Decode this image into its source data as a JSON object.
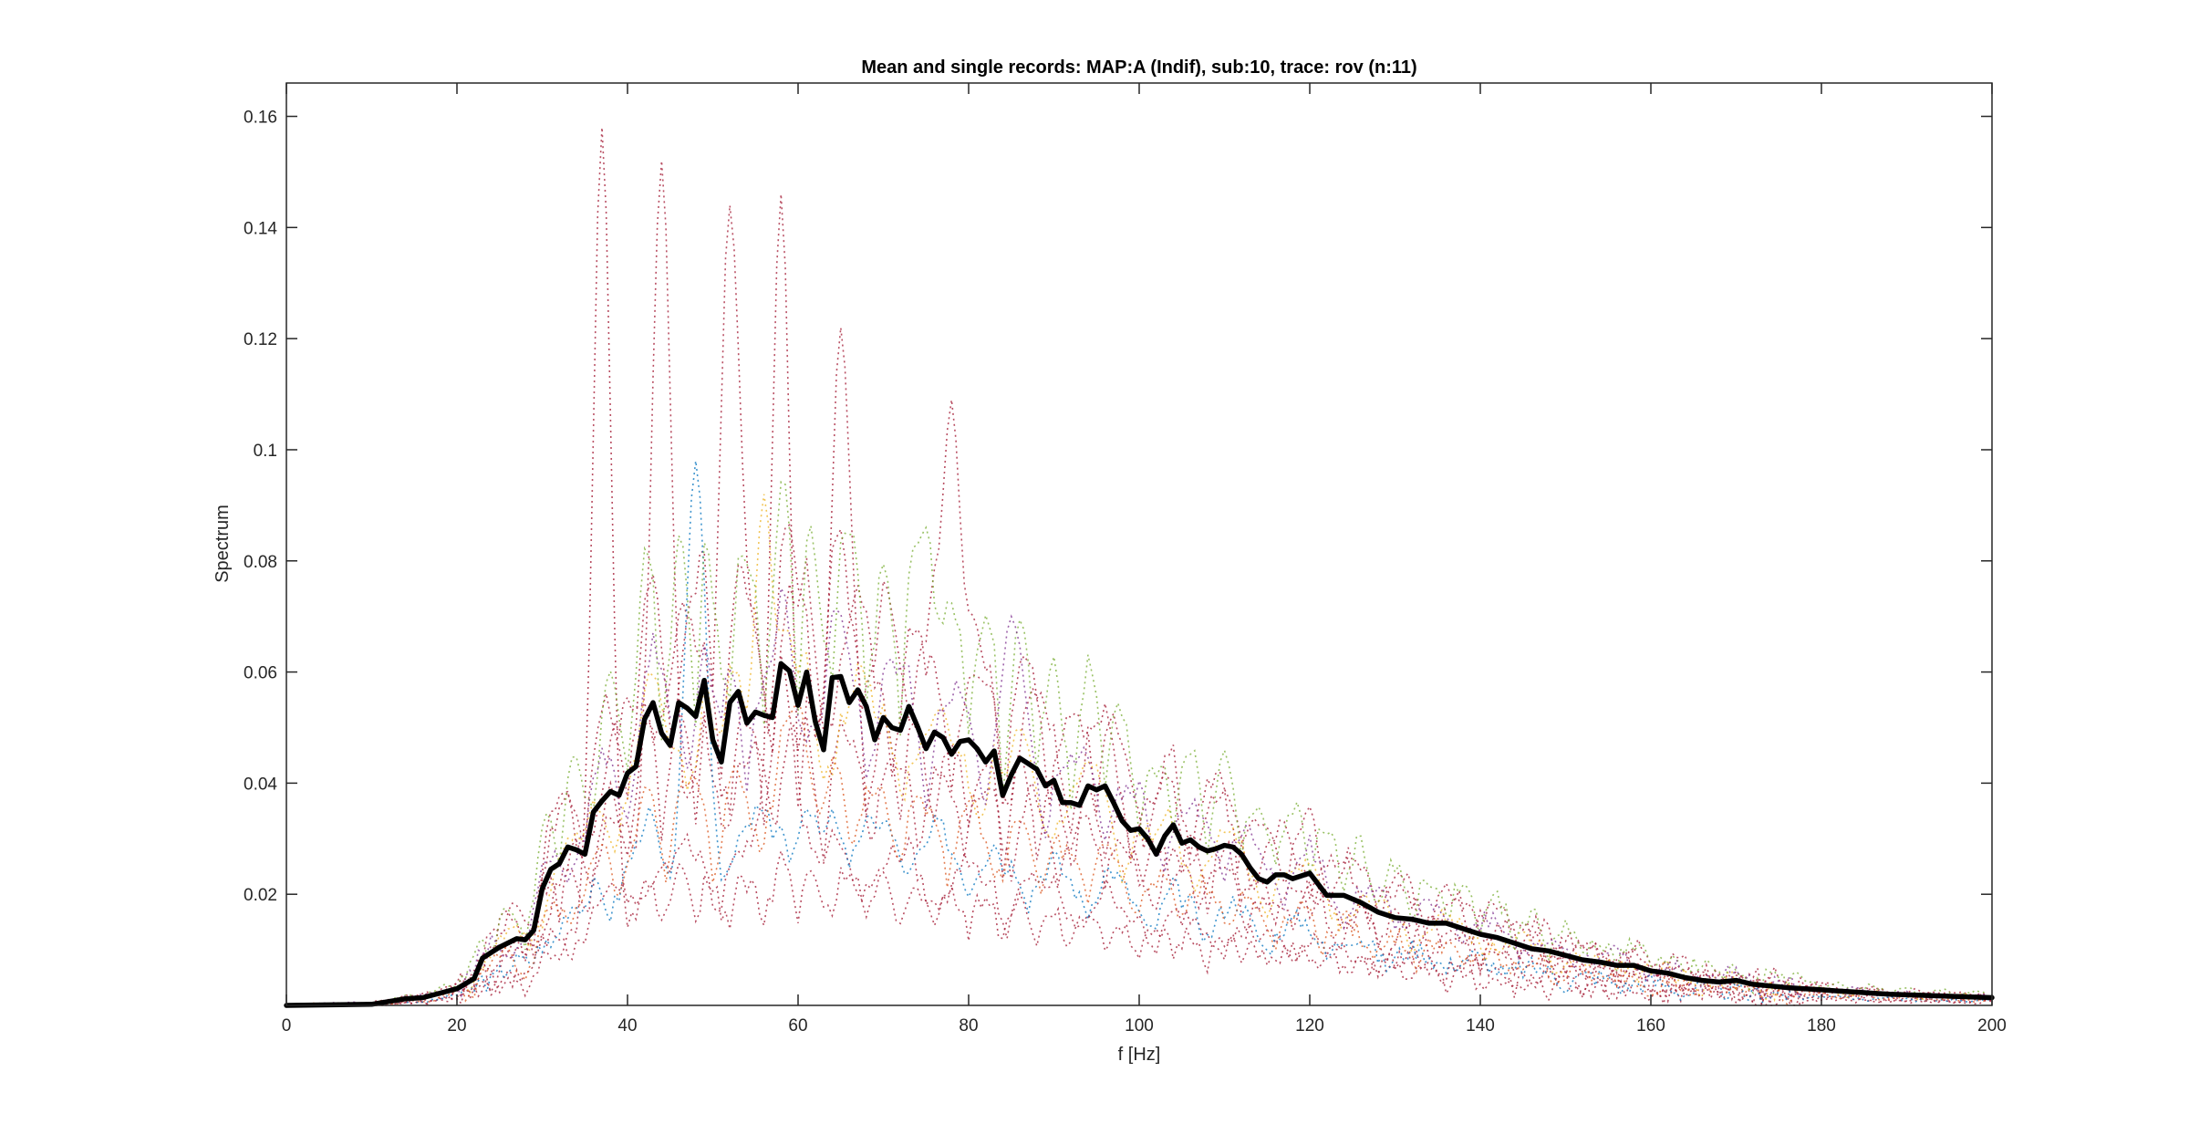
{
  "chart_data": {
    "type": "line",
    "title": "Mean and single records: MAP:A (Indif), sub:10, trace: rov (n:11)",
    "xlabel": "f [Hz]",
    "ylabel": "Spectrum",
    "xlim": [
      0,
      200
    ],
    "ylim": [
      0,
      0.166
    ],
    "x_ticks": [
      0,
      20,
      40,
      60,
      80,
      100,
      120,
      140,
      160,
      180,
      200
    ],
    "x_tick_labels": [
      "0",
      "20",
      "40",
      "60",
      "80",
      "100",
      "120",
      "140",
      "160",
      "180",
      "200"
    ],
    "y_ticks": [
      0.02,
      0.04,
      0.06,
      0.08,
      0.1,
      0.12,
      0.14,
      0.16
    ],
    "y_tick_labels": [
      "0.02",
      "0.04",
      "0.06",
      "0.08",
      "0.1",
      "0.12",
      "0.14",
      "0.16"
    ],
    "grid": false,
    "box": true,
    "mean_series": {
      "color": "#000000",
      "style": "solid-thick",
      "x": [
        0,
        10,
        14,
        16,
        18,
        20,
        22,
        23,
        25,
        27,
        28,
        29,
        30,
        31,
        32,
        33,
        34,
        35,
        36,
        37,
        38,
        39,
        40,
        41,
        42,
        43,
        44,
        45,
        46,
        47,
        48,
        49,
        50,
        51,
        52,
        53,
        54,
        55,
        56,
        57,
        58,
        59,
        60,
        61,
        62,
        63,
        64,
        65,
        66,
        67,
        68,
        69,
        70,
        71,
        72,
        73,
        74,
        75,
        76,
        77,
        78,
        79,
        80,
        81,
        82,
        83,
        84,
        85,
        86,
        87,
        88,
        89,
        90,
        91,
        92,
        93,
        94,
        95,
        96,
        97,
        98,
        99,
        100,
        101,
        102,
        103,
        104,
        105,
        106,
        107,
        108,
        109,
        110,
        111,
        112,
        113,
        114,
        115,
        116,
        117,
        118,
        120,
        122,
        124,
        126,
        128,
        130,
        132,
        134,
        136,
        138,
        140,
        142,
        144,
        146,
        148,
        150,
        152,
        154,
        156,
        158,
        160,
        162,
        164,
        166,
        168,
        170,
        172,
        174,
        176,
        178,
        180,
        182,
        184,
        186,
        188,
        190,
        192,
        194,
        196,
        198,
        200
      ],
      "y": [
        0.0,
        0.0002,
        0.0012,
        0.0014,
        0.0022,
        0.003,
        0.0048,
        0.0085,
        0.0105,
        0.012,
        0.0118,
        0.0135,
        0.021,
        0.0245,
        0.0255,
        0.0285,
        0.028,
        0.0272,
        0.0348,
        0.0368,
        0.0385,
        0.0378,
        0.0418,
        0.043,
        0.0515,
        0.0545,
        0.049,
        0.0468,
        0.0545,
        0.0535,
        0.052,
        0.0585,
        0.0478,
        0.0438,
        0.0545,
        0.0565,
        0.0508,
        0.0528,
        0.0522,
        0.0518,
        0.0615,
        0.0602,
        0.054,
        0.06,
        0.0512,
        0.046,
        0.059,
        0.0592,
        0.0545,
        0.0568,
        0.0538,
        0.0478,
        0.0518,
        0.05,
        0.0495,
        0.0538,
        0.0502,
        0.0462,
        0.0492,
        0.0482,
        0.0452,
        0.0475,
        0.0478,
        0.0462,
        0.0438,
        0.0458,
        0.0378,
        0.0415,
        0.0445,
        0.0435,
        0.0425,
        0.0395,
        0.0405,
        0.0365,
        0.0365,
        0.036,
        0.0395,
        0.0388,
        0.0395,
        0.0365,
        0.0332,
        0.0315,
        0.0318,
        0.03,
        0.0272,
        0.0305,
        0.0325,
        0.0292,
        0.0298,
        0.0285,
        0.0278,
        0.0282,
        0.0288,
        0.0285,
        0.0272,
        0.0248,
        0.0228,
        0.0222,
        0.0235,
        0.0235,
        0.0228,
        0.0238,
        0.0198,
        0.0198,
        0.0185,
        0.0168,
        0.0158,
        0.0155,
        0.0148,
        0.0148,
        0.0138,
        0.0128,
        0.0122,
        0.0112,
        0.0102,
        0.0098,
        0.009,
        0.0082,
        0.0078,
        0.0072,
        0.0072,
        0.0062,
        0.0058,
        0.005,
        0.0045,
        0.0042,
        0.0045,
        0.0038,
        0.0035,
        0.0032,
        0.003,
        0.0028,
        0.0026,
        0.0024,
        0.0022,
        0.002,
        0.0019,
        0.0018,
        0.0017,
        0.0016,
        0.0015,
        0.0014
      ]
    },
    "single_records": [
      {
        "color": "#a2142f",
        "peak_x": 37,
        "peak_y": 0.158
      },
      {
        "color": "#a2142f",
        "peak_x": 44,
        "peak_y": 0.152
      },
      {
        "color": "#a2142f",
        "peak_x": 52,
        "peak_y": 0.144
      },
      {
        "color": "#a2142f",
        "peak_x": 58,
        "peak_y": 0.146
      },
      {
        "color": "#a2142f",
        "peak_x": 65,
        "peak_y": 0.122
      },
      {
        "color": "#a2142f",
        "peak_x": 78,
        "peak_y": 0.109
      },
      {
        "color": "#0072bd",
        "peak_x": 48,
        "peak_y": 0.098
      },
      {
        "color": "#edb120",
        "peak_x": 56,
        "peak_y": 0.092
      },
      {
        "color": "#77ac30",
        "peak_x": 75,
        "peak_y": 0.086
      },
      {
        "color": "#d95319",
        "peak_x": 60,
        "peak_y": 0.055
      },
      {
        "color": "#7e2f8e",
        "peak_x": 85,
        "peak_y": 0.07
      }
    ]
  }
}
